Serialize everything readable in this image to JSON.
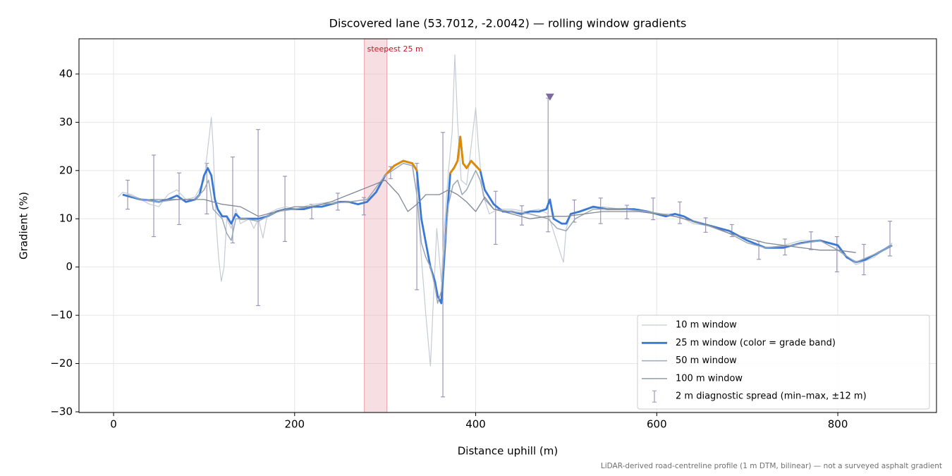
{
  "chart_data": {
    "type": "line",
    "title": "Discovered lane (53.7012, -2.0042) — rolling window gradients",
    "x_label": "Distance uphill (m)",
    "y_label": "Gradient (%)",
    "footnote": "LiDAR-derived road-centreline profile (1 m DTM, bilinear) — not a surveyed asphalt gradient",
    "xlim": [
      -38.2,
      909
    ],
    "ylim": [
      -30.15,
      47.3
    ],
    "xticks": [
      0,
      200,
      400,
      600,
      800
    ],
    "yticks": [
      {
        "value": -30,
        "label": "−30"
      },
      {
        "value": -20,
        "label": "−20"
      },
      {
        "value": -10,
        "label": "−10"
      },
      0,
      10,
      20,
      30,
      40
    ],
    "grid": true,
    "legend": "lower right",
    "highlight": {
      "label": "steepest 25 m",
      "x": [
        277,
        302
      ],
      "color": "#e8a0ac"
    },
    "series": [
      {
        "name": "10 m window",
        "color": "#c3cbd5",
        "width": 1.2,
        "x": [
          5,
          10,
          20,
          30,
          40,
          50,
          60,
          70,
          80,
          90,
          100,
          105,
          108,
          110,
          113,
          116,
          119,
          122,
          125,
          130,
          135,
          140,
          150,
          155,
          160,
          165,
          170,
          180,
          190,
          200,
          220,
          240,
          260,
          280,
          290,
          300,
          310,
          320,
          330,
          335,
          340,
          345,
          350,
          353,
          357,
          362,
          366,
          370,
          374,
          377,
          380,
          384,
          390,
          395,
          400,
          403,
          408,
          415,
          425,
          440,
          455,
          470,
          480,
          485,
          490,
          495,
          497,
          500,
          505,
          520,
          540,
          560,
          580,
          600,
          620,
          640,
          660,
          680,
          700,
          720,
          740,
          760,
          780,
          800,
          820,
          840,
          860
        ],
        "values": [
          14.5,
          15.5,
          15,
          14,
          13,
          12.5,
          15,
          16,
          14,
          14.5,
          18,
          26,
          31,
          25,
          10,
          2,
          -3,
          0,
          10,
          8,
          12,
          9,
          10,
          8,
          10,
          6,
          11,
          12,
          12.5,
          12,
          13,
          13.5,
          13.5,
          14,
          15.5,
          19,
          21,
          22,
          21.5,
          15,
          2,
          -10,
          -20.5,
          -8,
          8,
          -3,
          10,
          20,
          28,
          44,
          30,
          18,
          17,
          25,
          33,
          25,
          15,
          11,
          12,
          12,
          11.5,
          12,
          11,
          8,
          5,
          2,
          1,
          8,
          11,
          12,
          12.5,
          12,
          12,
          11,
          11,
          9,
          8.5,
          7,
          5,
          4,
          4.5,
          5.5,
          5.5,
          3.5,
          0.5,
          2,
          5
        ]
      },
      {
        "name": "25 m window (color = grade band)",
        "color": "#3a78d4",
        "width": 2.8,
        "grade_bands": [
          {
            "min": 20,
            "color": "#e08a00"
          },
          {
            "min": 25,
            "color": "#c0182a"
          }
        ],
        "x": [
          10,
          20,
          30,
          40,
          50,
          60,
          70,
          80,
          90,
          95,
          100,
          104,
          108,
          112,
          115,
          120,
          125,
          130,
          135,
          140,
          150,
          160,
          170,
          180,
          190,
          200,
          210,
          220,
          230,
          240,
          250,
          260,
          270,
          280,
          290,
          300,
          310,
          320,
          330,
          335,
          340,
          345,
          350,
          355,
          358,
          362,
          365,
          368,
          372,
          376,
          380,
          383,
          386,
          390,
          395,
          400,
          405,
          410,
          420,
          430,
          440,
          450,
          460,
          470,
          478,
          482,
          486,
          495,
          500,
          505,
          515,
          530,
          545,
          560,
          575,
          590,
          600,
          610,
          620,
          630,
          640,
          660,
          680,
          700,
          720,
          740,
          760,
          780,
          800,
          810,
          820,
          830,
          845,
          860
        ],
        "values": [
          15,
          14.5,
          14,
          13.8,
          13.5,
          14,
          14.8,
          13.5,
          14,
          15,
          19,
          20.5,
          19,
          14,
          12,
          10.5,
          10.5,
          9,
          11,
          10,
          10,
          10,
          10.5,
          11.5,
          12,
          12,
          12,
          12.5,
          12.5,
          13,
          13.5,
          13.5,
          13,
          13.5,
          15.5,
          19,
          21,
          22,
          21.5,
          20,
          10,
          5,
          0,
          -3,
          -6,
          -7.5,
          1,
          10,
          19.5,
          20.5,
          22,
          27,
          21.5,
          20.5,
          22,
          21,
          20,
          16,
          13,
          11.5,
          11.5,
          11,
          11.5,
          11.5,
          12,
          14,
          10,
          9,
          9,
          11,
          11.5,
          12.5,
          12,
          12,
          12,
          11.5,
          11,
          10.5,
          11,
          10.5,
          9.5,
          8.5,
          7.5,
          5.5,
          4,
          4,
          5,
          5.5,
          4.5,
          2,
          1,
          1.5,
          3,
          4.5
        ]
      },
      {
        "name": "50 m window",
        "color": "#9aa8b8",
        "width": 1.5,
        "x": [
          15,
          30,
          50,
          70,
          90,
          100,
          105,
          110,
          120,
          125,
          130,
          135,
          145,
          160,
          180,
          200,
          230,
          260,
          280,
          300,
          320,
          330,
          335,
          340,
          345,
          350,
          355,
          358,
          362,
          366,
          370,
          375,
          380,
          385,
          390,
          400,
          405,
          410,
          420,
          440,
          460,
          480,
          490,
          500,
          510,
          530,
          560,
          590,
          620,
          650,
          680,
          700,
          720,
          750,
          780,
          800,
          820,
          845,
          860
        ],
        "values": [
          15,
          14,
          13.5,
          14,
          14,
          16,
          18,
          12,
          10,
          7,
          5.5,
          10,
          10,
          9.5,
          11.5,
          12,
          13,
          13.5,
          14,
          19,
          21.5,
          21,
          15,
          5,
          2,
          0,
          -4,
          -7.5,
          -5,
          5,
          13,
          17,
          18,
          15,
          16,
          20,
          18,
          14,
          12,
          11.5,
          11,
          10,
          8,
          7.5,
          10,
          12,
          12,
          11.5,
          10.5,
          9,
          7,
          5,
          4,
          4.5,
          5.5,
          3.5,
          1,
          3,
          4.5
        ]
      },
      {
        "name": "100 m window",
        "color": "#7f8894",
        "width": 1.3,
        "x": [
          40,
          60,
          80,
          100,
          120,
          140,
          160,
          180,
          200,
          220,
          240,
          260,
          280,
          300,
          315,
          325,
          335,
          345,
          360,
          370,
          380,
          390,
          400,
          410,
          420,
          440,
          460,
          480,
          500,
          520,
          540,
          560,
          580,
          600,
          620,
          640,
          660,
          680,
          700,
          720,
          740,
          760,
          780,
          800,
          820
        ],
        "values": [
          14,
          14,
          14,
          14,
          13,
          12.5,
          10.5,
          11.5,
          12.5,
          12.5,
          13.5,
          15,
          16.5,
          18,
          15,
          11.5,
          13,
          15,
          15,
          16,
          15,
          13.5,
          11.5,
          14.5,
          12,
          11,
          10,
          10.5,
          10.5,
          11,
          11.5,
          11.5,
          11.5,
          11,
          10.5,
          9.5,
          8.5,
          7,
          6,
          5,
          4.5,
          4,
          3.5,
          3.5,
          3
        ]
      }
    ],
    "spread": {
      "name": "2 m diagnostic spread (min–max, ±12 m)",
      "color": "#9e95b8",
      "x": [
        15.6,
        44.4,
        72.4,
        103,
        131.6,
        159.7,
        189.3,
        218.9,
        247.7,
        276.5,
        306,
        335,
        363.8,
        422,
        451,
        480,
        509,
        538,
        567,
        596,
        625.5,
        654,
        683,
        712.8,
        741.6,
        770.4,
        799,
        828.8,
        857.6
      ],
      "low": [
        12,
        6.3,
        8.8,
        11,
        5,
        -8,
        5.3,
        10,
        11.8,
        10.8,
        18.3,
        -4.7,
        -26.9,
        4.7,
        8.7,
        7.3,
        9.3,
        9,
        10,
        9.8,
        9,
        7.2,
        6.3,
        1.6,
        2.5,
        3.6,
        -1,
        -1.6,
        2.3
      ],
      "high": [
        18,
        23.2,
        19.5,
        21.5,
        22.8,
        28.5,
        18.8,
        13,
        15.3,
        14.4,
        20.8,
        21.5,
        27.9,
        15.7,
        12.7,
        35,
        13.9,
        14.3,
        12.8,
        14.3,
        13.5,
        10.2,
        8.8,
        5.3,
        5.8,
        7.3,
        6.3,
        4.7,
        9.5
      ]
    },
    "marker": {
      "x": 482,
      "y": 35.2,
      "color": "#7a6a9e"
    }
  }
}
